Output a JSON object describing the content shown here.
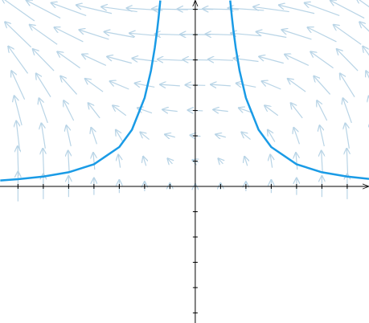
{
  "chart_data": {
    "type": "line",
    "xlim": [
      -7.71,
      6.86
    ],
    "ylim": [
      -5.4,
      7.37
    ],
    "xticks": [
      -7,
      -6,
      -5,
      -4,
      -3,
      -2,
      -1,
      1,
      2,
      3,
      4,
      5,
      6
    ],
    "yticks": [
      -5,
      -4,
      -3,
      -2,
      -1,
      1,
      2,
      3,
      4,
      5,
      6,
      7
    ],
    "x": [
      -7.7,
      -7,
      -6,
      -5,
      -4,
      -3,
      -2.5,
      -2,
      -1.75,
      -1.6,
      -1.5,
      -1.45,
      -1.38,
      0,
      1.38,
      1.45,
      1.5,
      1.6,
      1.75,
      2,
      2.5,
      3,
      4,
      5,
      6,
      6.86
    ],
    "series": [
      {
        "color": "#1a9be6",
        "values": [
          0.236,
          0.286,
          0.389,
          0.56,
          0.875,
          1.556,
          2.24,
          3.5,
          4.57,
          5.47,
          6.22,
          6.66,
          7.35,
          null,
          7.35,
          6.66,
          6.22,
          5.47,
          4.57,
          3.5,
          2.24,
          1.556,
          0.875,
          0.56,
          0.389,
          0.297
        ]
      }
    ]
  }
}
